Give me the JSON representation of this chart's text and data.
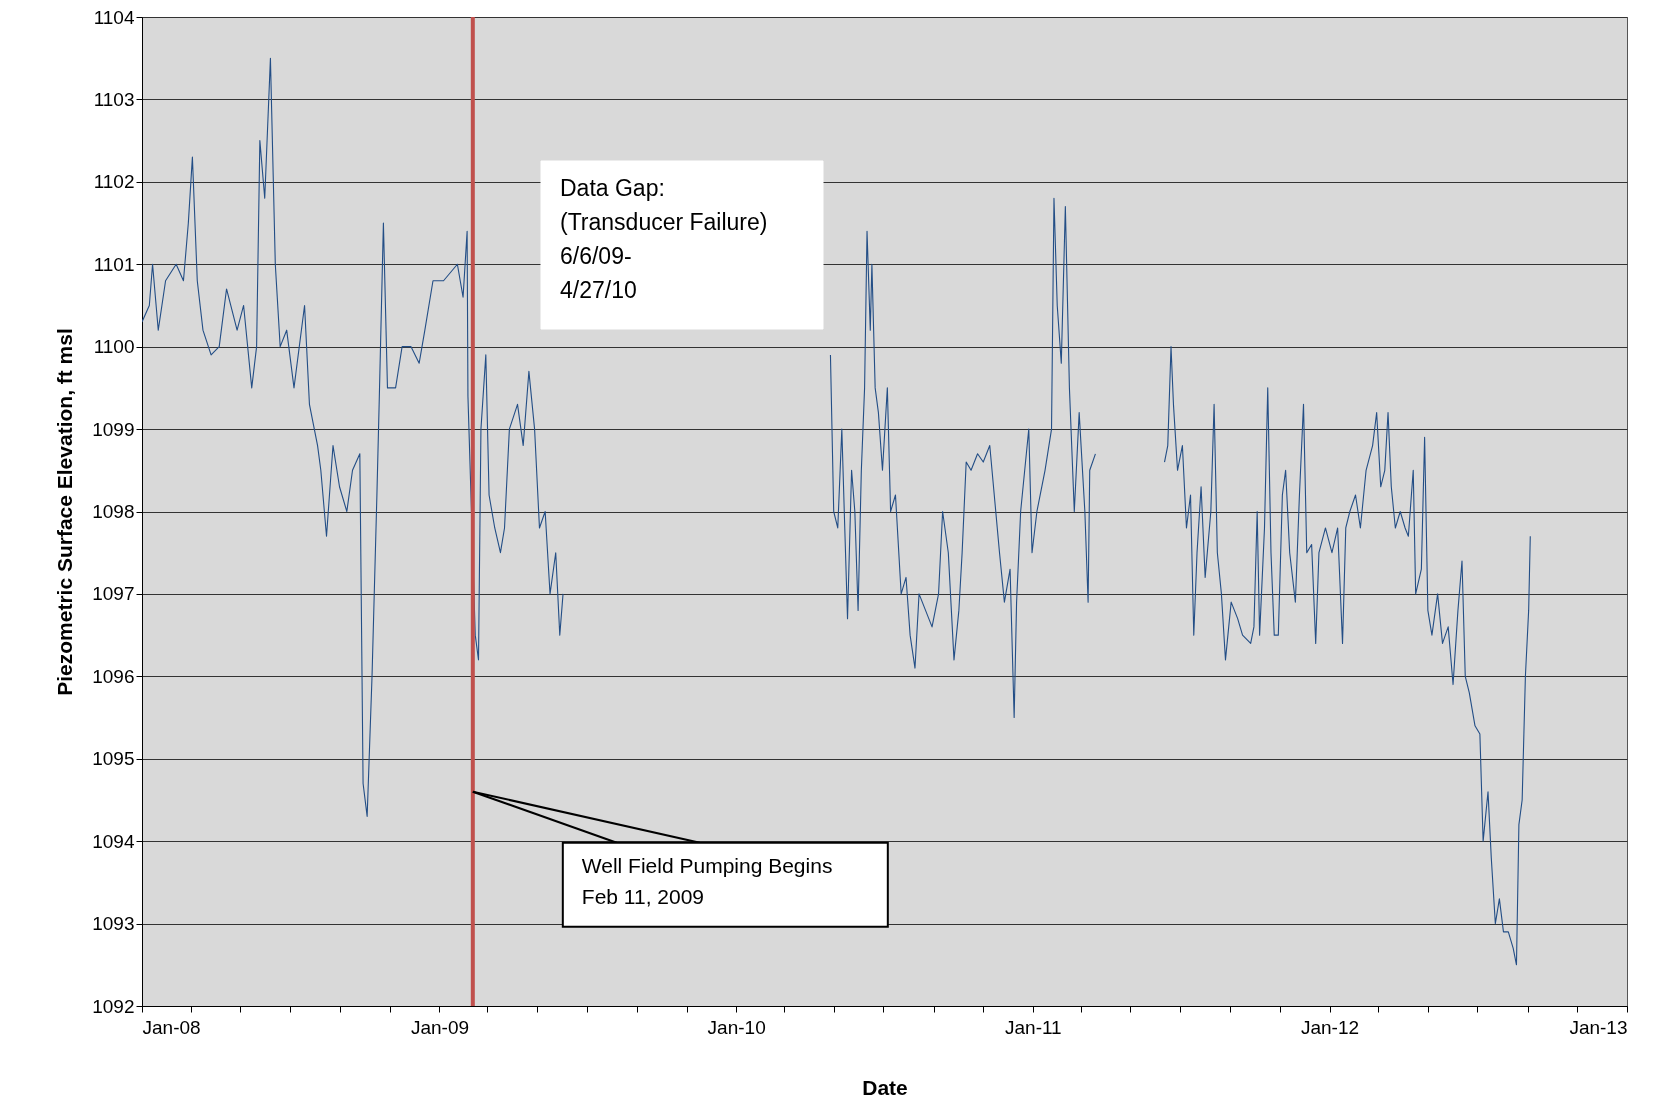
{
  "chart_data": {
    "type": "line",
    "xlabel": "Date",
    "ylabel": "Piezometric Surface Elevation, ft msl",
    "xlim": [
      "2008-01-01",
      "2013-01-01"
    ],
    "ylim": [
      1092,
      1104
    ],
    "xticks": [
      {
        "value": "2008-01-01",
        "label": "Jan-08"
      },
      {
        "value": "2008-03-01",
        "label": null
      },
      {
        "value": "2008-05-01",
        "label": null
      },
      {
        "value": "2008-07-01",
        "label": null
      },
      {
        "value": "2008-09-01",
        "label": null
      },
      {
        "value": "2008-11-01",
        "label": null
      },
      {
        "value": "2009-01-01",
        "label": "Jan-09"
      },
      {
        "value": "2009-03-01",
        "label": null
      },
      {
        "value": "2009-05-01",
        "label": null
      },
      {
        "value": "2009-07-01",
        "label": null
      },
      {
        "value": "2009-09-01",
        "label": null
      },
      {
        "value": "2009-11-01",
        "label": null
      },
      {
        "value": "2010-01-01",
        "label": "Jan-10"
      },
      {
        "value": "2010-03-01",
        "label": null
      },
      {
        "value": "2010-05-01",
        "label": null
      },
      {
        "value": "2010-07-01",
        "label": null
      },
      {
        "value": "2010-09-01",
        "label": null
      },
      {
        "value": "2010-11-01",
        "label": null
      },
      {
        "value": "2011-01-01",
        "label": "Jan-11"
      },
      {
        "value": "2011-03-01",
        "label": null
      },
      {
        "value": "2011-05-01",
        "label": null
      },
      {
        "value": "2011-07-01",
        "label": null
      },
      {
        "value": "2011-09-01",
        "label": null
      },
      {
        "value": "2011-11-01",
        "label": null
      },
      {
        "value": "2012-01-01",
        "label": "Jan-12"
      },
      {
        "value": "2012-03-01",
        "label": null
      },
      {
        "value": "2012-05-01",
        "label": null
      },
      {
        "value": "2012-07-01",
        "label": null
      },
      {
        "value": "2012-09-01",
        "label": null
      },
      {
        "value": "2012-11-01",
        "label": null
      },
      {
        "value": "2013-01-01",
        "label": "Jan-13"
      }
    ],
    "yticks": [
      1092,
      1093,
      1094,
      1095,
      1096,
      1097,
      1098,
      1099,
      1100,
      1101,
      1102,
      1103,
      1104
    ],
    "grid": "y",
    "color": "#234e86",
    "x": [
      "2008-01-01",
      "2008-01-10",
      "2008-01-14",
      "2008-01-21",
      "2008-01-30",
      "2008-02-12",
      "2008-02-21",
      "2008-02-27",
      "2008-03-03",
      "2008-03-09",
      "2008-03-16",
      "2008-03-26",
      "2008-04-05",
      "2008-04-14",
      "2008-04-27",
      "2008-05-05",
      "2008-05-15",
      "2008-05-21",
      "2008-05-25",
      "2008-05-31",
      "2008-06-07",
      "2008-06-13",
      "2008-06-19",
      "2008-06-27",
      "2008-07-06",
      "2008-07-19",
      "2008-07-25",
      "2008-08-04",
      "2008-08-08",
      "2008-08-15",
      "2008-08-23",
      "2008-08-31",
      "2008-09-09",
      "2008-09-16",
      "2008-09-25",
      "2008-09-29",
      "2008-10-04",
      "2008-10-10",
      "2008-10-16",
      "2008-10-19",
      "2008-10-24",
      "2008-10-29",
      "2008-11-08",
      "2008-11-16",
      "2008-11-27",
      "2008-12-07",
      "2008-12-14",
      "2008-12-24",
      "2009-01-06",
      "2009-01-23",
      "2009-01-30",
      "2009-02-04",
      "2009-02-05",
      "2009-02-14",
      "2009-02-18",
      "2009-02-21",
      "2009-02-27",
      "2009-03-03",
      "2009-03-10",
      "2009-03-17",
      "2009-03-22",
      "2009-03-28",
      "2009-04-07",
      "2009-04-14",
      "2009-04-21",
      "2009-04-28",
      "2009-05-04",
      "2009-05-11",
      "2009-05-17",
      "2009-05-24",
      "2009-05-29",
      "2009-06-02",
      "2009-06-06",
      "2010-04-27",
      "2010-05-01",
      "2010-05-06",
      "2010-05-11",
      "2010-05-14",
      "2010-05-18",
      "2010-05-23",
      "2010-05-27",
      "2010-05-31",
      "2010-06-04",
      "2010-06-08",
      "2010-06-11",
      "2010-06-15",
      "2010-06-17",
      "2010-06-21",
      "2010-06-25",
      "2010-06-30",
      "2010-07-06",
      "2010-07-10",
      "2010-07-16",
      "2010-07-23",
      "2010-07-29",
      "2010-08-03",
      "2010-08-09",
      "2010-08-14",
      "2010-08-22",
      "2010-08-30",
      "2010-09-07",
      "2010-09-12",
      "2010-09-19",
      "2010-09-26",
      "2010-10-02",
      "2010-10-06",
      "2010-10-11",
      "2010-10-17",
      "2010-10-25",
      "2010-11-01",
      "2010-11-09",
      "2010-11-21",
      "2010-11-27",
      "2010-12-04",
      "2010-12-09",
      "2010-12-12",
      "2010-12-17",
      "2010-12-24",
      "2010-12-27",
      "2010-12-31",
      "2011-01-06",
      "2011-01-16",
      "2011-01-24",
      "2011-01-27",
      "2011-01-31",
      "2011-02-05",
      "2011-02-10",
      "2011-02-15",
      "2011-02-21",
      "2011-02-27",
      "2011-03-06",
      "2011-03-10",
      "2011-03-12",
      "2011-03-19",
      "2011-04-15",
      "2011-06-12",
      "2011-06-16",
      "2011-06-20",
      "2011-06-23",
      "2011-06-28",
      "2011-07-04",
      "2011-07-09",
      "2011-07-14",
      "2011-07-18",
      "2011-07-22",
      "2011-07-27",
      "2011-08-01",
      "2011-08-08",
      "2011-08-12",
      "2011-08-16",
      "2011-08-21",
      "2011-08-26",
      "2011-09-02",
      "2011-09-10",
      "2011-09-16",
      "2011-09-26",
      "2011-09-30",
      "2011-10-04",
      "2011-10-07",
      "2011-10-13",
      "2011-10-17",
      "2011-10-21",
      "2011-10-25",
      "2011-10-30",
      "2011-11-04",
      "2011-11-08",
      "2011-11-13",
      "2011-11-20",
      "2011-11-25",
      "2011-11-30",
      "2011-12-04",
      "2011-12-10",
      "2011-12-15",
      "2011-12-19",
      "2011-12-27",
      "2012-01-04",
      "2012-01-11",
      "2012-01-17",
      "2012-01-21",
      "2012-01-26",
      "2012-02-02",
      "2012-02-08",
      "2012-02-15",
      "2012-02-23",
      "2012-02-28",
      "2012-03-04",
      "2012-03-09",
      "2012-03-13",
      "2012-03-17",
      "2012-03-22",
      "2012-03-28",
      "2012-04-03",
      "2012-04-07",
      "2012-04-13",
      "2012-04-16",
      "2012-04-23",
      "2012-04-27",
      "2012-05-01",
      "2012-05-06",
      "2012-05-13",
      "2012-05-19",
      "2012-05-26",
      "2012-06-01",
      "2012-06-07",
      "2012-06-12",
      "2012-06-16",
      "2012-06-21",
      "2012-06-28",
      "2012-07-04",
      "2012-07-08",
      "2012-07-14",
      "2012-07-18",
      "2012-07-23",
      "2012-07-28",
      "2012-08-02",
      "2012-08-08",
      "2012-08-14",
      "2012-08-18",
      "2012-08-21",
      "2012-08-25",
      "2012-08-29",
      "2012-09-02",
      "2012-09-04"
    ],
    "values": [
      1100.3,
      1100.5,
      1101.0,
      1100.2,
      1100.8,
      1101.0,
      1100.8,
      1101.5,
      1102.3,
      1100.8,
      1100.2,
      1099.9,
      1100.0,
      1100.7,
      1100.2,
      1100.5,
      1099.5,
      1100.0,
      1102.5,
      1101.8,
      1103.5,
      1101.0,
      1100.0,
      1100.2,
      1099.5,
      1100.5,
      1099.3,
      1098.8,
      1098.5,
      1097.7,
      1098.8,
      1098.3,
      1098.0,
      1098.5,
      1098.7,
      1094.7,
      1094.3,
      1096.0,
      1098.2,
      1099.4,
      1101.5,
      1099.5,
      1099.5,
      1100.0,
      1100.0,
      1099.8,
      1100.2,
      1100.8,
      1100.8,
      1101.0,
      1100.6,
      1101.4,
      1099.4,
      1096.5,
      1096.2,
      1099.0,
      1099.9,
      1098.2,
      1097.8,
      1097.5,
      1097.8,
      1099.0,
      1099.3,
      1098.8,
      1099.7,
      1099.0,
      1097.8,
      1098.0,
      1097.0,
      1097.5,
      1096.5,
      1097.0,
      null,
      1099.9,
      1098.0,
      1097.8,
      1099.0,
      1098.0,
      1096.7,
      1098.5,
      1098.0,
      1096.8,
      1098.5,
      1099.5,
      1101.4,
      1100.2,
      1101.0,
      1099.5,
      1099.2,
      1098.5,
      1099.5,
      1098.0,
      1098.2,
      1097.0,
      1097.2,
      1096.5,
      1096.1,
      1097.0,
      1096.8,
      1096.6,
      1097.0,
      1098.0,
      1097.5,
      1096.2,
      1096.8,
      1097.5,
      1098.6,
      1098.5,
      1098.7,
      1098.6,
      1098.8,
      1097.5,
      1096.9,
      1097.3,
      1095.5,
      1096.9,
      1098.0,
      1098.7,
      1099.0,
      1097.5,
      1098.0,
      1098.5,
      1099.0,
      1101.8,
      1100.5,
      1099.8,
      1101.7,
      1099.5,
      1098.0,
      1099.2,
      1098.0,
      1096.9,
      1098.5,
      1098.7,
      null,
      1098.6,
      1098.8,
      1100.0,
      1099.3,
      1098.5,
      1098.8,
      1097.8,
      1098.2,
      1096.5,
      1097.5,
      1098.3,
      1097.2,
      1098.0,
      1099.3,
      1097.5,
      1097.0,
      1096.2,
      1096.9,
      1096.7,
      1096.5,
      1096.4,
      1096.6,
      1098.0,
      1096.5,
      1097.8,
      1099.5,
      1097.5,
      1096.5,
      1096.5,
      1098.2,
      1098.5,
      1097.5,
      1096.9,
      1098.2,
      1099.3,
      1097.5,
      1097.6,
      1096.4,
      1097.5,
      1097.8,
      1097.5,
      1097.8,
      1096.4,
      1097.8,
      1098.0,
      1098.2,
      1097.8,
      1098.5,
      1098.8,
      1099.2,
      1098.3,
      1098.5,
      1099.2,
      1098.3,
      1097.8,
      1098.0,
      1097.8,
      1097.7,
      1098.5,
      1097.0,
      1097.3,
      1098.9,
      1096.8,
      1096.5,
      1097.0,
      1096.4,
      1096.6,
      1095.9,
      1096.8,
      1097.4,
      1096.0,
      1095.8,
      1095.4,
      1095.3,
      1094.0,
      1094.6,
      1093.8,
      1093.0,
      1093.3,
      1092.9,
      1092.9,
      1092.7,
      1092.5,
      1094.2,
      1094.5,
      1096.0,
      1096.8,
      1097.7
    ],
    "ref_lines": [
      {
        "axis": "x",
        "value": "2009-02-11",
        "color": "#c0504d"
      }
    ],
    "annotations": [
      "Data Gap:\n(Transducer Failure)\n6/6/09-\n4/27/10",
      {
        "text": "Well Field Pumping Begins\nFeb 11, 2009",
        "x": "2009-02-11",
        "y": 1094.6
      }
    ]
  }
}
